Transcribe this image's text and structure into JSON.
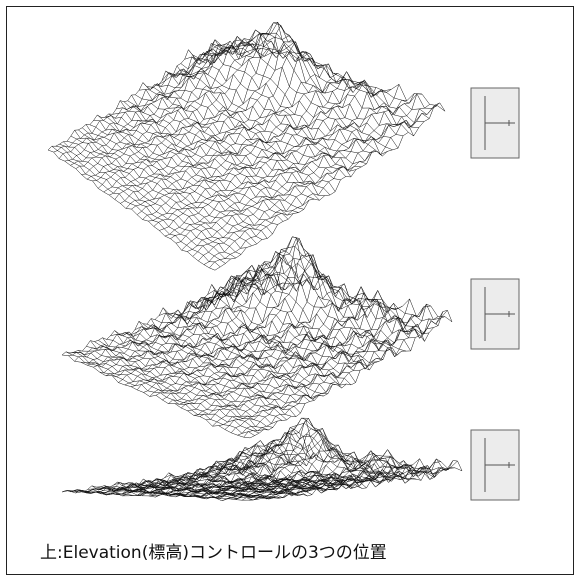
{
  "caption": "上:Elevation(標高)コントロールの3つの位置"
}
